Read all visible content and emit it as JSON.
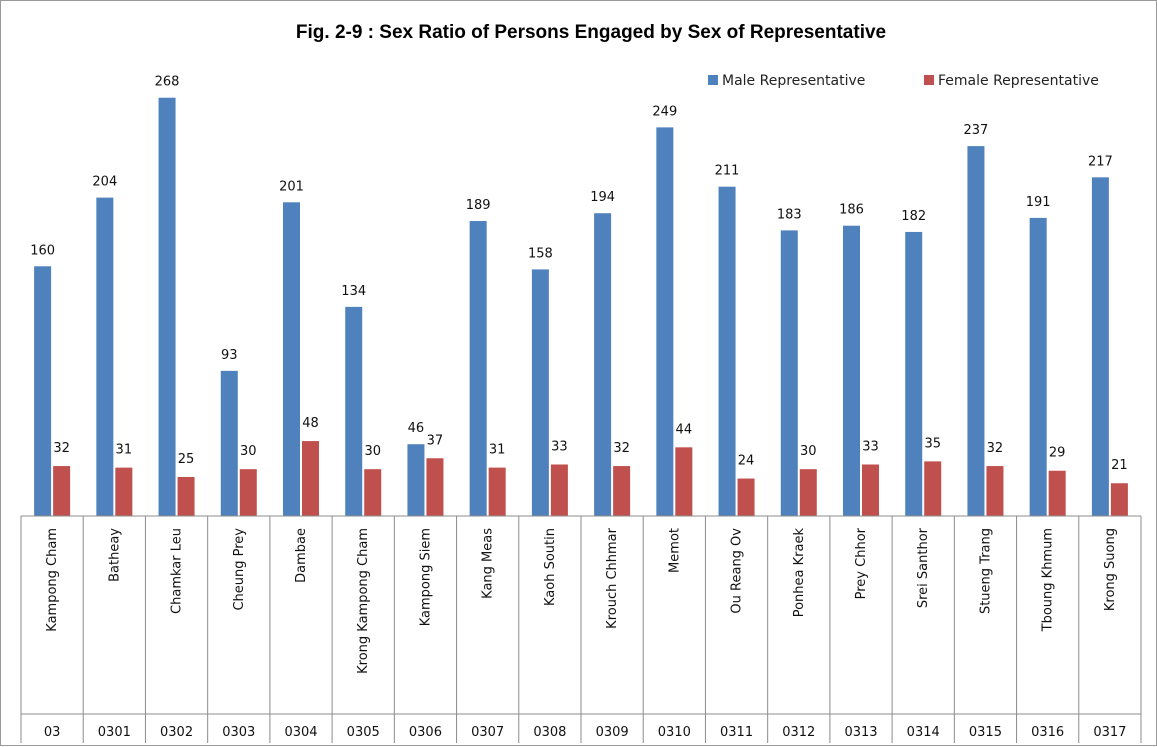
{
  "chart_data": {
    "type": "bar",
    "title": "Fig. 2-9 : Sex Ratio of Persons Engaged by Sex of Representative",
    "categories": [
      "Kampong Cham",
      "Batheay",
      "Chamkar Leu",
      "Cheung Prey",
      "Dambae",
      "Krong Kampong Cham",
      "Kampong Siem",
      "Kang Meas",
      "Kaoh Soutin",
      "Krouch Chhmar",
      "Memot",
      "Ou Reang Ov",
      "Ponhea Kraek",
      "Prey Chhor",
      "Srei Santhor",
      "Stueng Trang",
      "Tboung Khmum",
      "Krong Suong"
    ],
    "codes": [
      "03",
      "0301",
      "0302",
      "0303",
      "0304",
      "0305",
      "0306",
      "0307",
      "0308",
      "0309",
      "0310",
      "0311",
      "0312",
      "0313",
      "0314",
      "0315",
      "0316",
      "0317"
    ],
    "series": [
      {
        "name": "Male Representative",
        "color": "#4F81BD",
        "values": [
          160,
          204,
          268,
          93,
          201,
          134,
          46,
          189,
          158,
          194,
          249,
          211,
          183,
          186,
          182,
          237,
          191,
          217
        ]
      },
      {
        "name": "Female Representative",
        "color": "#C0504D",
        "values": [
          32,
          31,
          25,
          30,
          48,
          30,
          37,
          31,
          33,
          32,
          44,
          24,
          30,
          33,
          35,
          32,
          29,
          21
        ]
      }
    ],
    "ylim": [
      0,
      280
    ],
    "grid": false,
    "legend_position": "top-right"
  }
}
